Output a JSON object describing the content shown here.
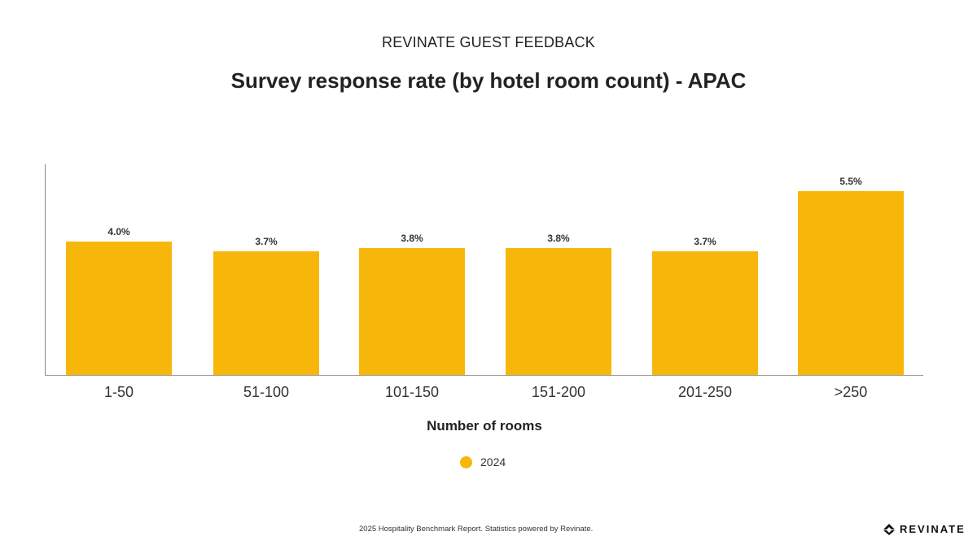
{
  "header": {
    "supertitle": "REVINATE GUEST FEEDBACK",
    "title": "Survey response rate (by hotel room count) - APAC"
  },
  "chart_data": {
    "type": "bar",
    "title": "Survey response rate (by hotel room count) - APAC",
    "categories": [
      "1-50",
      "51-100",
      "101-150",
      "151-200",
      "201-250",
      ">250"
    ],
    "series": [
      {
        "name": "2024",
        "values": [
          4.0,
          3.7,
          3.8,
          3.8,
          3.7,
          5.5
        ],
        "color": "#F7B70A"
      }
    ],
    "value_labels": [
      "4.0%",
      "3.7%",
      "3.8%",
      "3.8%",
      "3.7%",
      "5.5%"
    ],
    "xlabel": "Number of rooms",
    "ylabel": "",
    "ylim": [
      0,
      6.3
    ],
    "grid": false,
    "legend_position": "bottom"
  },
  "legend": {
    "label": "2024",
    "color": "#F7B70A"
  },
  "footer": {
    "text": "2025 Hospitality Benchmark Report. Statistics powered by Revinate.",
    "logo": "REVINATE"
  }
}
